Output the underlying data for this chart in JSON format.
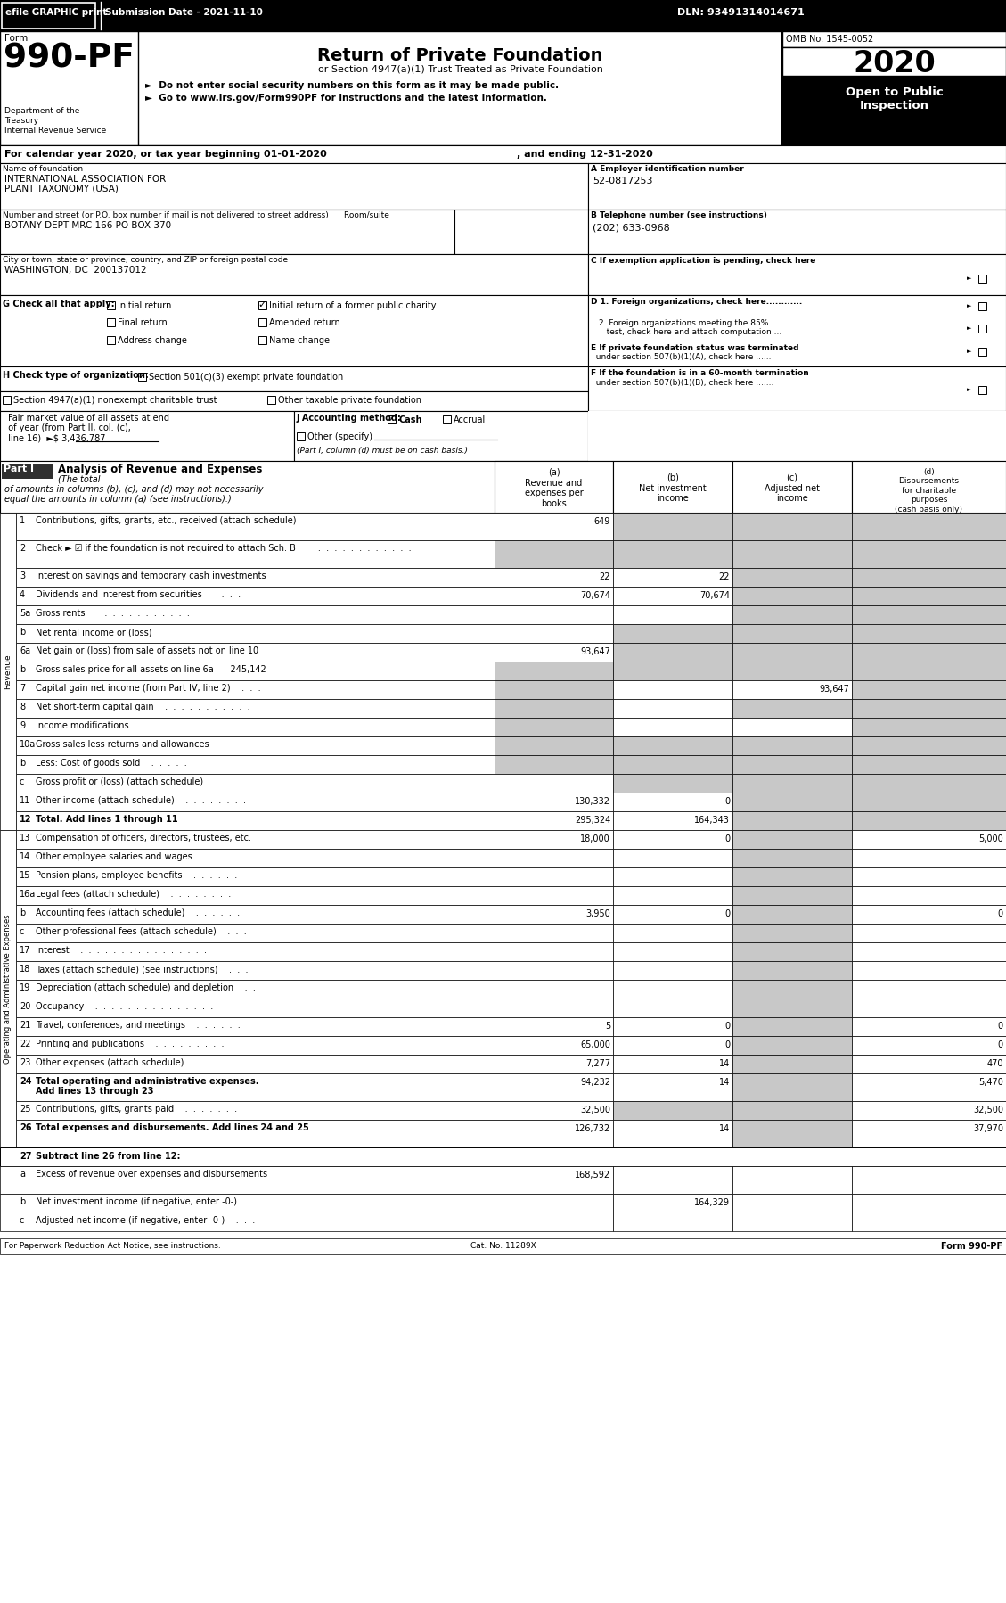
{
  "shade": "#c8c8c8",
  "rows": [
    {
      "num": "1",
      "label": "Contributions, gifts, grants, etc., received (attach schedule)",
      "a": "649",
      "b": "",
      "c": "",
      "d": "",
      "shade_a": false,
      "shade_b": true,
      "shade_c": true,
      "shade_d": true,
      "tall": true
    },
    {
      "num": "2",
      "label": "Check ► ☑ if the foundation is not required to attach Sch. B        .  .  .  .  .  .  .  .  .  .  .  .",
      "a": "",
      "b": "",
      "c": "",
      "d": "",
      "shade_a": true,
      "shade_b": true,
      "shade_c": true,
      "shade_d": true,
      "tall": true
    },
    {
      "num": "3",
      "label": "Interest on savings and temporary cash investments",
      "a": "22",
      "b": "22",
      "c": "",
      "d": "",
      "shade_a": false,
      "shade_b": false,
      "shade_c": true,
      "shade_d": true,
      "tall": false
    },
    {
      "num": "4",
      "label": "Dividends and interest from securities       .  .  .",
      "a": "70,674",
      "b": "70,674",
      "c": "",
      "d": "",
      "shade_a": false,
      "shade_b": false,
      "shade_c": true,
      "shade_d": true,
      "tall": false
    },
    {
      "num": "5a",
      "label": "Gross rents       .  .  .  .  .  .  .  .  .  .  .",
      "a": "",
      "b": "",
      "c": "",
      "d": "",
      "shade_a": false,
      "shade_b": false,
      "shade_c": true,
      "shade_d": true,
      "tall": false
    },
    {
      "num": "b",
      "label": "Net rental income or (loss)",
      "a": "",
      "b": "",
      "c": "",
      "d": "",
      "shade_a": false,
      "shade_b": true,
      "shade_c": true,
      "shade_d": true,
      "tall": false
    },
    {
      "num": "6a",
      "label": "Net gain or (loss) from sale of assets not on line 10",
      "a": "93,647",
      "b": "",
      "c": "",
      "d": "",
      "shade_a": false,
      "shade_b": true,
      "shade_c": true,
      "shade_d": true,
      "tall": false
    },
    {
      "num": "b",
      "label": "Gross sales price for all assets on line 6a      245,142",
      "a": "",
      "b": "",
      "c": "",
      "d": "",
      "shade_a": true,
      "shade_b": true,
      "shade_c": true,
      "shade_d": true,
      "tall": false
    },
    {
      "num": "7",
      "label": "Capital gain net income (from Part IV, line 2)    .  .  .",
      "a": "",
      "b": "",
      "c": "93,647",
      "d": "",
      "shade_a": true,
      "shade_b": false,
      "shade_c": false,
      "shade_d": true,
      "tall": false
    },
    {
      "num": "8",
      "label": "Net short-term capital gain    .  .  .  .  .  .  .  .  .  .  .",
      "a": "",
      "b": "",
      "c": "",
      "d": "",
      "shade_a": true,
      "shade_b": false,
      "shade_c": true,
      "shade_d": true,
      "tall": false
    },
    {
      "num": "9",
      "label": "Income modifications    .  .  .  .  .  .  .  .  .  .  .  .",
      "a": "",
      "b": "",
      "c": "",
      "d": "",
      "shade_a": true,
      "shade_b": false,
      "shade_c": false,
      "shade_d": true,
      "tall": false
    },
    {
      "num": "10a",
      "label": "Gross sales less returns and allowances",
      "a": "",
      "b": "",
      "c": "",
      "d": "",
      "shade_a": true,
      "shade_b": true,
      "shade_c": true,
      "shade_d": true,
      "tall": false
    },
    {
      "num": "b",
      "label": "Less: Cost of goods sold    .  .  .  .  .",
      "a": "",
      "b": "",
      "c": "",
      "d": "",
      "shade_a": true,
      "shade_b": true,
      "shade_c": true,
      "shade_d": true,
      "tall": false
    },
    {
      "num": "c",
      "label": "Gross profit or (loss) (attach schedule)",
      "a": "",
      "b": "",
      "c": "",
      "d": "",
      "shade_a": false,
      "shade_b": true,
      "shade_c": true,
      "shade_d": true,
      "tall": false
    },
    {
      "num": "11",
      "label": "Other income (attach schedule)    .  .  .  .  .  .  .  .",
      "a": "130,332",
      "b": "0",
      "c": "",
      "d": "",
      "shade_a": false,
      "shade_b": false,
      "shade_c": true,
      "shade_d": true,
      "tall": false
    },
    {
      "num": "12",
      "label": "Total. Add lines 1 through 11",
      "a": "295,324",
      "b": "164,343",
      "c": "",
      "d": "",
      "shade_a": false,
      "shade_b": false,
      "shade_c": true,
      "shade_d": true,
      "tall": false,
      "bold": true
    }
  ],
  "exp_rows": [
    {
      "num": "13",
      "label": "Compensation of officers, directors, trustees, etc.",
      "a": "18,000",
      "b": "0",
      "c": "",
      "d": "5,000",
      "shade_c": true
    },
    {
      "num": "14",
      "label": "Other employee salaries and wages    .  .  .  .  .  .",
      "a": "",
      "b": "",
      "c": "",
      "d": "",
      "shade_c": true
    },
    {
      "num": "15",
      "label": "Pension plans, employee benefits    .  .  .  .  .  .",
      "a": "",
      "b": "",
      "c": "",
      "d": "",
      "shade_c": true
    },
    {
      "num": "16a",
      "label": "Legal fees (attach schedule)    .  .  .  .  .  .  .  .",
      "a": "",
      "b": "",
      "c": "",
      "d": "",
      "shade_c": true
    },
    {
      "num": "b",
      "label": "Accounting fees (attach schedule)    .  .  .  .  .  .",
      "a": "3,950",
      "b": "0",
      "c": "",
      "d": "0",
      "shade_c": true
    },
    {
      "num": "c",
      "label": "Other professional fees (attach schedule)    .  .  .",
      "a": "",
      "b": "",
      "c": "",
      "d": "",
      "shade_c": true
    },
    {
      "num": "17",
      "label": "Interest    .  .  .  .  .  .  .  .  .  .  .  .  .  .  .  .",
      "a": "",
      "b": "",
      "c": "",
      "d": "",
      "shade_c": true
    },
    {
      "num": "18",
      "label": "Taxes (attach schedule) (see instructions)    .  .  .",
      "a": "",
      "b": "",
      "c": "",
      "d": "",
      "shade_c": true
    },
    {
      "num": "19",
      "label": "Depreciation (attach schedule) and depletion    .  .",
      "a": "",
      "b": "",
      "c": "",
      "d": "",
      "shade_c": true
    },
    {
      "num": "20",
      "label": "Occupancy    .  .  .  .  .  .  .  .  .  .  .  .  .  .  .",
      "a": "",
      "b": "",
      "c": "",
      "d": "",
      "shade_c": true
    },
    {
      "num": "21",
      "label": "Travel, conferences, and meetings    .  .  .  .  .  .",
      "a": "5",
      "b": "0",
      "c": "",
      "d": "0",
      "shade_c": true
    },
    {
      "num": "22",
      "label": "Printing and publications    .  .  .  .  .  .  .  .  .",
      "a": "65,000",
      "b": "0",
      "c": "",
      "d": "0",
      "shade_c": true
    },
    {
      "num": "23",
      "label": "Other expenses (attach schedule)    .  .  .  .  .  .",
      "a": "7,277",
      "b": "14",
      "c": "",
      "d": "470",
      "shade_c": true
    },
    {
      "num": "24",
      "label": "Total operating and administrative expenses.\nAdd lines 13 through 23",
      "a": "94,232",
      "b": "14",
      "c": "",
      "d": "5,470",
      "shade_c": true,
      "bold": true,
      "tall": true
    },
    {
      "num": "25",
      "label": "Contributions, gifts, grants paid    .  .  .  .  .  .  .",
      "a": "32,500",
      "b": "",
      "c": "",
      "d": "32,500",
      "shade_b": true,
      "shade_c": true
    },
    {
      "num": "26",
      "label": "Total expenses and disbursements. Add lines 24 and 25",
      "a": "126,732",
      "b": "14",
      "c": "",
      "d": "37,970",
      "shade_c": true,
      "bold": true,
      "tall": true
    }
  ],
  "bottom_rows": [
    {
      "num": "27",
      "label": "Subtract line 26 from line 12:",
      "bold": true,
      "header": true
    },
    {
      "num": "a",
      "label": "Excess of revenue over expenses and disbursements",
      "a": "168,592",
      "b": "",
      "c": "",
      "d": "",
      "tall": true
    },
    {
      "num": "b",
      "label": "Net investment income (if negative, enter -0-)",
      "a": "",
      "b": "164,329",
      "c": "",
      "d": ""
    },
    {
      "num": "c",
      "label": "Adjusted net income (if negative, enter -0-)    .  .  .",
      "a": "",
      "b": "",
      "c": "",
      "d": ""
    }
  ]
}
